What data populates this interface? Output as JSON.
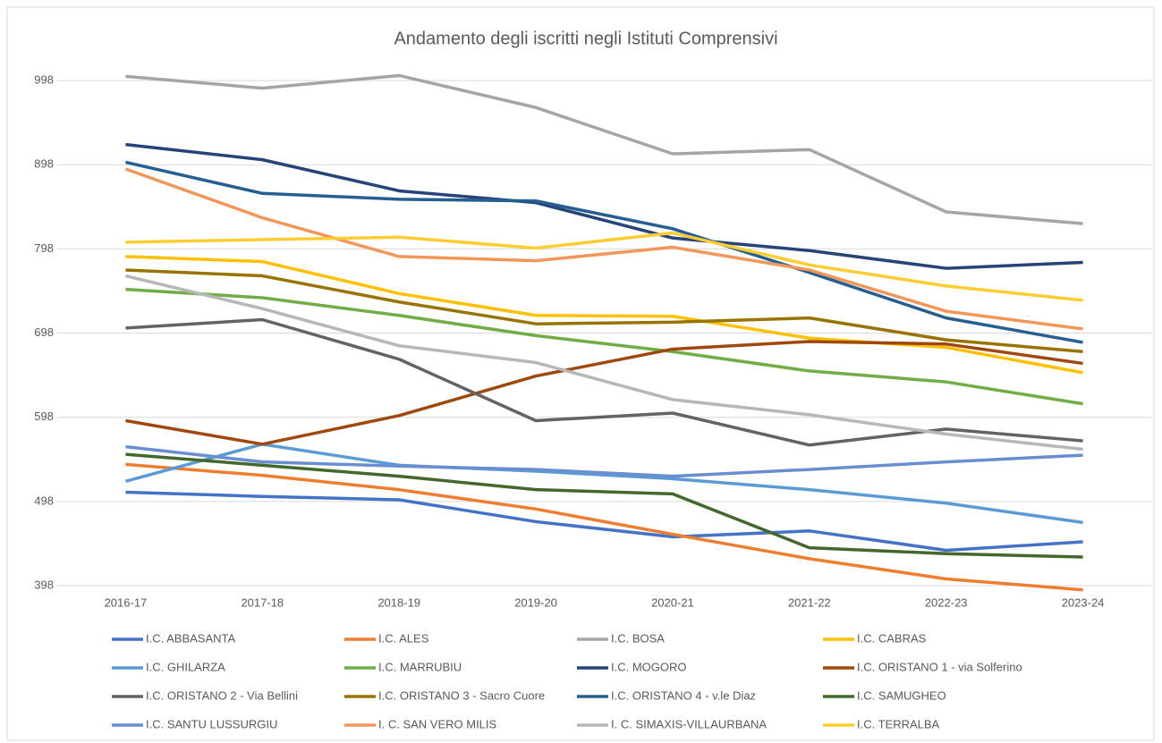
{
  "chart_data": {
    "type": "line",
    "title": "Andamento degli iscritti negli Istituti Comprensivi",
    "categories": [
      "2016-17",
      "2017-18",
      "2018-19",
      "2019-20",
      "2020-21",
      "2021-22",
      "2022-23",
      "2023-24"
    ],
    "ylim": [
      398,
      1013
    ],
    "yticks": [
      398,
      498,
      598,
      698,
      798,
      898,
      998
    ],
    "grid": true,
    "legend": "bottom",
    "series": [
      {
        "name": "I.C. ABBASANTA",
        "color": "#4472c4",
        "values": [
          509,
          504,
          500,
          474,
          456,
          463,
          440,
          450
        ]
      },
      {
        "name": "I.C. ALES",
        "color": "#ed7d31",
        "values": [
          542,
          529,
          512,
          489,
          459,
          430,
          406,
          393
        ]
      },
      {
        "name": "I.C. BOSA",
        "color": "#a5a5a5",
        "values": [
          1003,
          989,
          1004,
          966,
          911,
          916,
          842,
          828
        ]
      },
      {
        "name": "I.C. CABRAS",
        "color": "#ffc000",
        "values": [
          789,
          783,
          745,
          719,
          718,
          692,
          681,
          651
        ]
      },
      {
        "name": "I.C. GHILARZA",
        "color": "#5b9bd5",
        "values": [
          522,
          566,
          541,
          534,
          525,
          512,
          496,
          473
        ]
      },
      {
        "name": "I.C. MARRUBIU",
        "color": "#70ad47",
        "values": [
          750,
          740,
          719,
          695,
          676,
          653,
          640,
          614
        ]
      },
      {
        "name": "I.C. MOGORO",
        "color": "#264478",
        "values": [
          922,
          904,
          867,
          853,
          811,
          796,
          775,
          782
        ]
      },
      {
        "name": "I.C. ORISTANO 1 - via Solferino",
        "color": "#9e480e",
        "values": [
          594,
          566,
          600,
          647,
          679,
          688,
          685,
          662
        ]
      },
      {
        "name": "I.C. ORISTANO 2 - Via Bellini",
        "color": "#636363",
        "values": [
          704,
          714,
          667,
          594,
          603,
          565,
          584,
          570
        ]
      },
      {
        "name": "I.C. ORISTANO 3 - Sacro Cuore",
        "color": "#997300",
        "values": [
          773,
          766,
          735,
          709,
          711,
          716,
          690,
          676
        ]
      },
      {
        "name": "I.C. ORISTANO 4 - v.le Diaz",
        "color": "#255e91",
        "values": [
          901,
          864,
          857,
          855,
          822,
          770,
          716,
          687
        ]
      },
      {
        "name": "I.C. SAMUGHEO",
        "color": "#43682b",
        "values": [
          554,
          541,
          528,
          512,
          507,
          443,
          436,
          432
        ]
      },
      {
        "name": "I.C. SANTU LUSSURGIU",
        "color": "#698ed0",
        "values": [
          563,
          545,
          540,
          536,
          528,
          536,
          545,
          553
        ]
      },
      {
        "name": "I. C. SAN VERO MILIS",
        "color": "#f1975a",
        "values": [
          893,
          835,
          789,
          784,
          800,
          773,
          724,
          703
        ]
      },
      {
        "name": "I. C. SIMAXIS-VILLAURBANA",
        "color": "#b7b7b7",
        "values": [
          766,
          727,
          683,
          663,
          619,
          601,
          578,
          560
        ]
      },
      {
        "name": "I.C. TERRALBA",
        "color": "#ffcd33",
        "values": [
          806,
          809,
          812,
          799,
          817,
          779,
          754,
          737
        ]
      }
    ]
  }
}
